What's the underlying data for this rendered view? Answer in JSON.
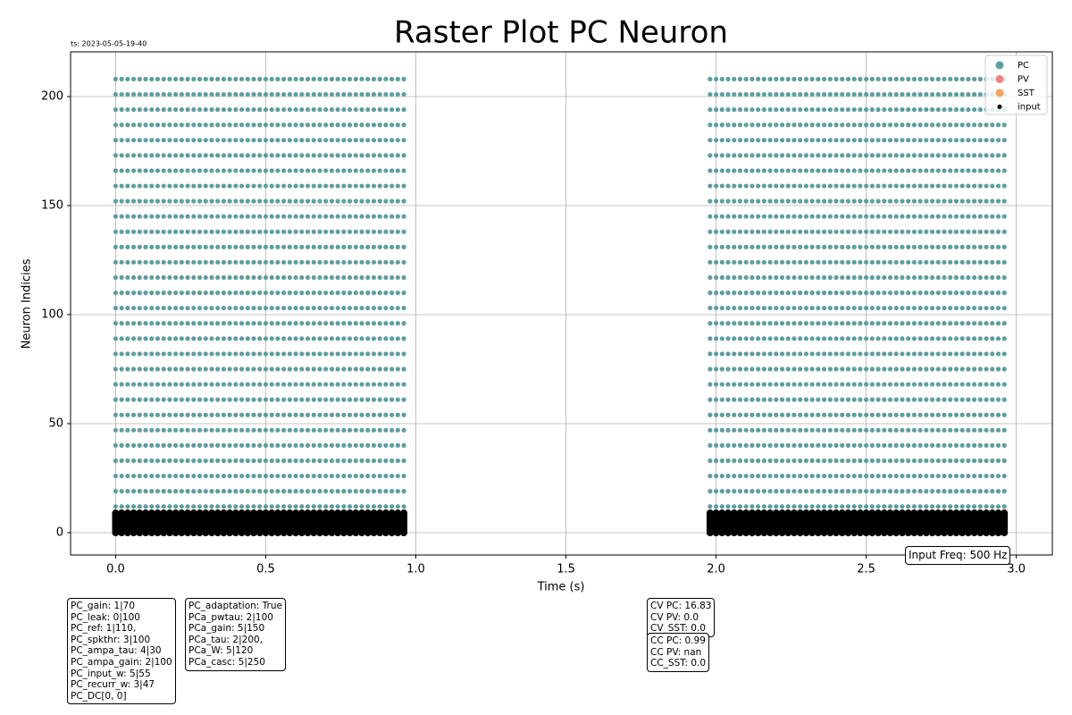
{
  "chart_data": {
    "type": "scatter",
    "title": "Raster Plot PC Neuron",
    "timestamp": "ts: 2023-05-05-19-40",
    "xlabel": "Time (s)",
    "ylabel": "Neuron Indicies",
    "xlim": [
      -0.15,
      3.12
    ],
    "ylim": [
      -10.25,
      220.5
    ],
    "xticks": [
      {
        "value": 0,
        "label": "0.0"
      },
      {
        "value": 0.5,
        "label": "0.5"
      },
      {
        "value": 1,
        "label": "1.0"
      },
      {
        "value": 1.5,
        "label": "1.5"
      },
      {
        "value": 2,
        "label": "2.0"
      },
      {
        "value": 2.5,
        "label": "2.5"
      },
      {
        "value": 3,
        "label": "3.0"
      }
    ],
    "yticks": [
      0,
      50,
      100,
      150,
      200
    ],
    "grid": true,
    "legend": "upper right",
    "series": [
      {
        "name": "PC",
        "color": "#5f9ea0",
        "x": [
          0,
          0.02,
          0.04,
          0.06,
          0.08,
          0.1,
          0.12,
          0.14,
          0.16,
          0.18,
          0.2,
          0.22,
          0.24,
          0.26,
          0.28,
          0.3,
          0.32,
          0.34,
          0.36,
          0.38,
          0.4,
          0.42,
          0.44,
          0.46,
          0.48,
          0.5,
          0.52,
          0.54,
          0.56,
          0.58,
          0.6,
          0.62,
          0.64,
          0.66,
          0.68,
          0.7,
          0.72,
          0.74,
          0.76,
          0.78,
          0.8,
          0.82,
          0.84,
          0.86,
          0.88,
          0.9,
          0.92,
          0.94,
          0.96,
          1.98,
          2,
          2.02,
          2.04,
          2.06,
          2.08,
          2.1,
          2.12,
          2.14,
          2.16,
          2.18,
          2.2,
          2.22,
          2.24,
          2.26,
          2.28,
          2.3,
          2.32,
          2.34,
          2.36,
          2.38,
          2.4,
          2.42,
          2.44,
          2.46,
          2.48,
          2.5,
          2.52,
          2.54,
          2.56,
          2.58,
          2.6,
          2.62,
          2.64,
          2.66,
          2.68,
          2.7,
          2.72,
          2.74,
          2.76,
          2.78,
          2.8,
          2.82,
          2.84,
          2.86,
          2.88,
          2.9,
          2.92,
          2.94,
          2.96
        ],
        "neurons": [
          12,
          19,
          26,
          33,
          40,
          47,
          54,
          61,
          68,
          75,
          82,
          89,
          96,
          103,
          110,
          117,
          124,
          131,
          138,
          145,
          152,
          159,
          166,
          173,
          180,
          187,
          194,
          201,
          208
        ]
      },
      {
        "name": "PV",
        "color": "#f08080",
        "x": [],
        "neurons": []
      },
      {
        "name": "SST",
        "color": "#f4a460",
        "x": [],
        "neurons": []
      },
      {
        "name": "input",
        "color": "#000000",
        "x": [
          0,
          0.02,
          0.04,
          0.06,
          0.08,
          0.1,
          0.12,
          0.14,
          0.16,
          0.18,
          0.2,
          0.22,
          0.24,
          0.26,
          0.28,
          0.3,
          0.32,
          0.34,
          0.36,
          0.38,
          0.4,
          0.42,
          0.44,
          0.46,
          0.48,
          0.5,
          0.52,
          0.54,
          0.56,
          0.58,
          0.6,
          0.62,
          0.64,
          0.66,
          0.68,
          0.7,
          0.72,
          0.74,
          0.76,
          0.78,
          0.8,
          0.82,
          0.84,
          0.86,
          0.88,
          0.9,
          0.92,
          0.94,
          0.96,
          1.98,
          2,
          2.02,
          2.04,
          2.06,
          2.08,
          2.1,
          2.12,
          2.14,
          2.16,
          2.18,
          2.2,
          2.22,
          2.24,
          2.26,
          2.28,
          2.3,
          2.32,
          2.34,
          2.36,
          2.38,
          2.4,
          2.42,
          2.44,
          2.46,
          2.48,
          2.5,
          2.52,
          2.54,
          2.56,
          2.58,
          2.6,
          2.62,
          2.64,
          2.66,
          2.68,
          2.7,
          2.72,
          2.74,
          2.76,
          2.78,
          2.8,
          2.82,
          2.84,
          2.86,
          2.88,
          2.9,
          2.92,
          2.94,
          2.96
        ],
        "neurons": [
          0,
          1,
          2,
          3,
          4,
          5,
          6,
          7,
          8,
          9
        ]
      }
    ],
    "annotation": "Input Freq: 500 Hz",
    "param_boxes": [
      [
        "PC_gain: 1|70",
        "PC_leak: 0|100",
        "PC_ref: 1|110,",
        "PC_spkthr: 3|100",
        "PC_ampa_tau: 4|30",
        "PC_ampa_gain: 2|100",
        "PC_input_w: 5|55",
        "PC_recurr_w: 3|47",
        "PC_DC[0, 0]"
      ],
      [
        "PC_adaptation: True",
        "PCa_pwtau: 2|100",
        "PCa_gain: 5|150",
        "PCa_tau: 2|200,",
        "PCa_W: 5|120",
        "PCa_casc: 5|250"
      ],
      [
        "CV PC: 16.83",
        "CV PV: 0.0",
        "CV_SST: 0.0"
      ],
      [
        "CC PC: 0.99",
        "CC PV: nan",
        "CC_SST: 0.0"
      ]
    ]
  }
}
